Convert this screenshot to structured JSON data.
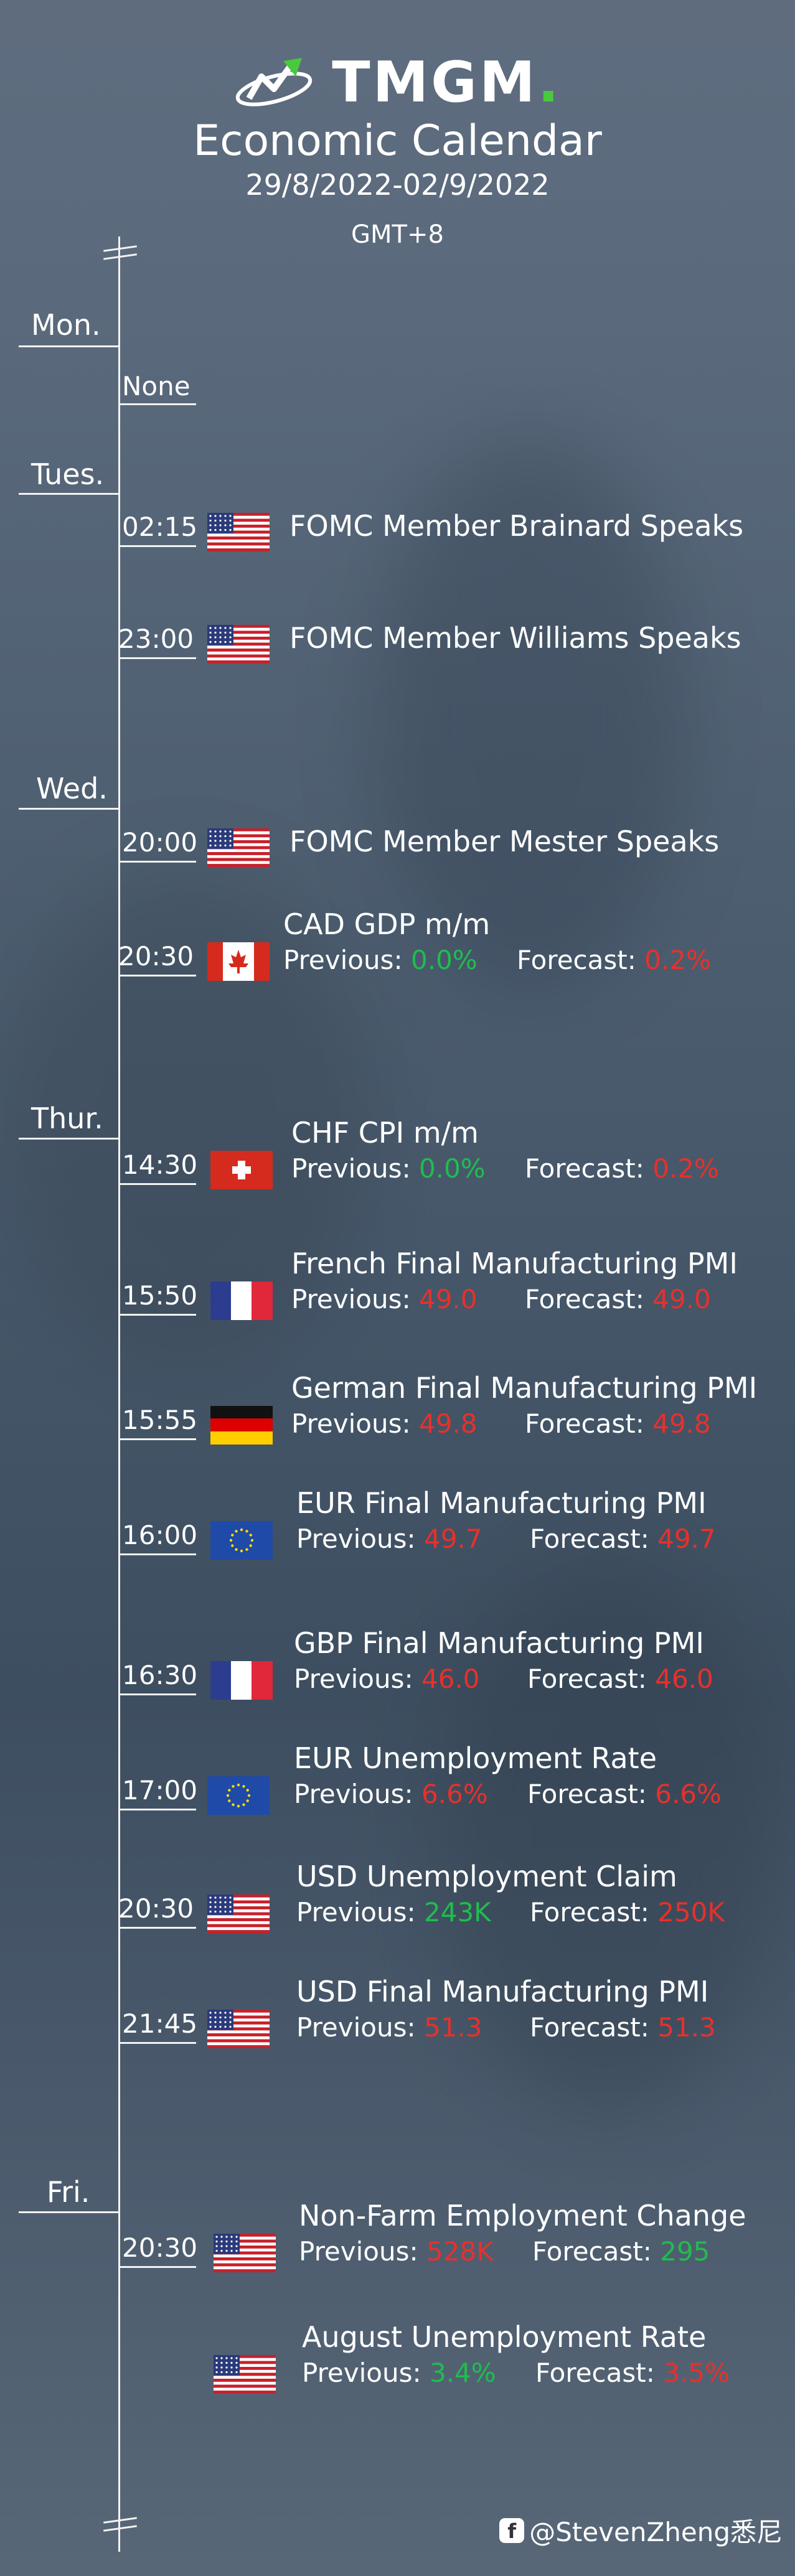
{
  "header": {
    "brand": "TMGM",
    "brand_dot": ".",
    "title": "Economic Calendar",
    "dates": "29/8/2022-02/9/2022",
    "timezone": "GMT+8"
  },
  "days": {
    "mon": "Mon.",
    "tue": "Tues.",
    "wed": "Wed.",
    "thu": "Thur.",
    "fri": "Fri."
  },
  "mon_none": "None",
  "labels": {
    "previous": "Previous: ",
    "forecast": "Forecast: "
  },
  "events": [
    {
      "time": "02:15",
      "title": "FOMC Member Brainard Speaks",
      "flag": "us-flag-icon"
    },
    {
      "time": "23:00",
      "title": "FOMC Member Williams Speaks",
      "flag": "us-flag-icon"
    },
    {
      "time": "20:00",
      "title": "FOMC Member Mester Speaks",
      "flag": "us-flag-icon"
    },
    {
      "time": "20:30",
      "title": "CAD GDP m/m",
      "flag": "canada-flag-icon",
      "previous": "0.0%",
      "forecast": "0.2%",
      "prev_color": "green",
      "fc_color": "red"
    },
    {
      "time": "14:30",
      "title": "CHF CPI m/m",
      "flag": "switzerland-flag-icon",
      "previous": "0.0%",
      "forecast": "0.2%",
      "prev_color": "green",
      "fc_color": "red"
    },
    {
      "time": "15:50",
      "title": "French Final Manufacturing PMI",
      "flag": "france-flag-icon",
      "previous": "49.0",
      "forecast": "49.0",
      "prev_color": "red",
      "fc_color": "red"
    },
    {
      "time": "15:55",
      "title": "German Final Manufacturing PMI",
      "flag": "germany-flag-icon",
      "previous": "49.8",
      "forecast": "49.8",
      "prev_color": "red",
      "fc_color": "red"
    },
    {
      "time": "16:00",
      "title": "EUR Final Manufacturing PMI",
      "flag": "eu-flag-icon",
      "previous": "49.7",
      "forecast": "49.7",
      "prev_color": "red",
      "fc_color": "red"
    },
    {
      "time": "16:30",
      "title": "GBP Final Manufacturing PMI",
      "flag": "france-flag-icon",
      "previous": "46.0",
      "forecast": "46.0",
      "prev_color": "red",
      "fc_color": "red"
    },
    {
      "time": "17:00",
      "title": "EUR Unemployment Rate",
      "flag": "eu-flag-icon",
      "previous": "6.6%",
      "forecast": "6.6%",
      "prev_color": "red",
      "fc_color": "red"
    },
    {
      "time": "20:30",
      "title": "USD Unemployment Claim",
      "flag": "us-flag-icon",
      "previous": "243K",
      "forecast": "250K",
      "prev_color": "green",
      "fc_color": "red"
    },
    {
      "time": "21:45",
      "title": "USD Final Manufacturing PMI",
      "flag": "us-flag-icon",
      "previous": "51.3",
      "forecast": "51.3",
      "prev_color": "red",
      "fc_color": "red"
    },
    {
      "time": "20:30",
      "title": "Non-Farm Employment Change",
      "flag": "us-flag-icon",
      "previous": "528K",
      "forecast": "295",
      "prev_color": "red",
      "fc_color": "green"
    },
    {
      "time": "",
      "title": "August Unemployment Rate",
      "flag": "us-flag-icon",
      "previous": "3.4%",
      "forecast": "3.5%",
      "prev_color": "green",
      "fc_color": "red"
    }
  ],
  "watermark": "@StevenZheng悉尼"
}
